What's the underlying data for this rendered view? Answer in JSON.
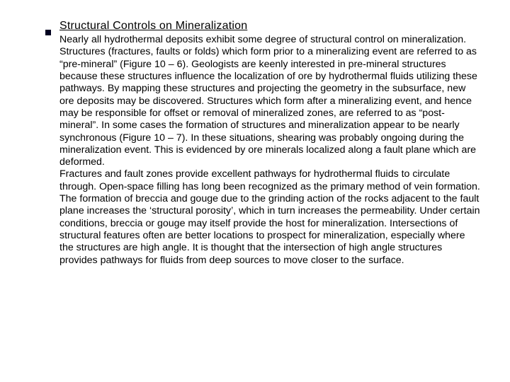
{
  "heading": "Structural Controls on Mineralization",
  "para1": "Nearly all hydrothermal deposits exhibit some degree of structural control on mineralization.  Structures (fractures, faults or folds) which form prior to a mineralizing event are referred to as “pre-mineral” (Figure 10 – 6).  Geologists are keenly interested in pre-mineral structures because these structures influence the localization of ore by hydrothermal fluids utilizing these pathways.  By mapping these structures and projecting the geometry in the subsurface, new ore deposits may be discovered.  Structures which form after a mineralizing event, and hence may be responsible for offset or removal of mineralized zones, are referred to as “post-mineral”.  In some cases the formation of structures and mineralization appear to be nearly synchronous (Figure 10 – 7).  In these situations, shearing was probably ongoing during the mineralization event.  This is evidenced by ore minerals localized along a fault plane which are deformed.",
  "para2": "Fractures and fault zones provide excellent pathways for hydrothermal fluids to circulate through.  Open-space filling has long been recognized as the primary method of vein formation.  The formation of breccia and gouge due to the grinding action of the rocks adjacent to the fault plane increases the ‘structural porosity’, which in turn increases the permeability.  Under certain conditions, breccia or gouge may itself provide the host for mineralization.  Intersections of structural features often are better locations to prospect for mineralization, especially where the structures are high angle.  It is thought that the intersection of high angle structures provides pathways for fluids from deep sources to move closer to the surface.",
  "colors": {
    "background": "#ffffff",
    "text": "#000000",
    "bullet": "#000020"
  },
  "typography": {
    "heading_fontsize": 16,
    "body_fontsize": 14.2,
    "line_height": 1.22,
    "font_family": "Arial"
  }
}
